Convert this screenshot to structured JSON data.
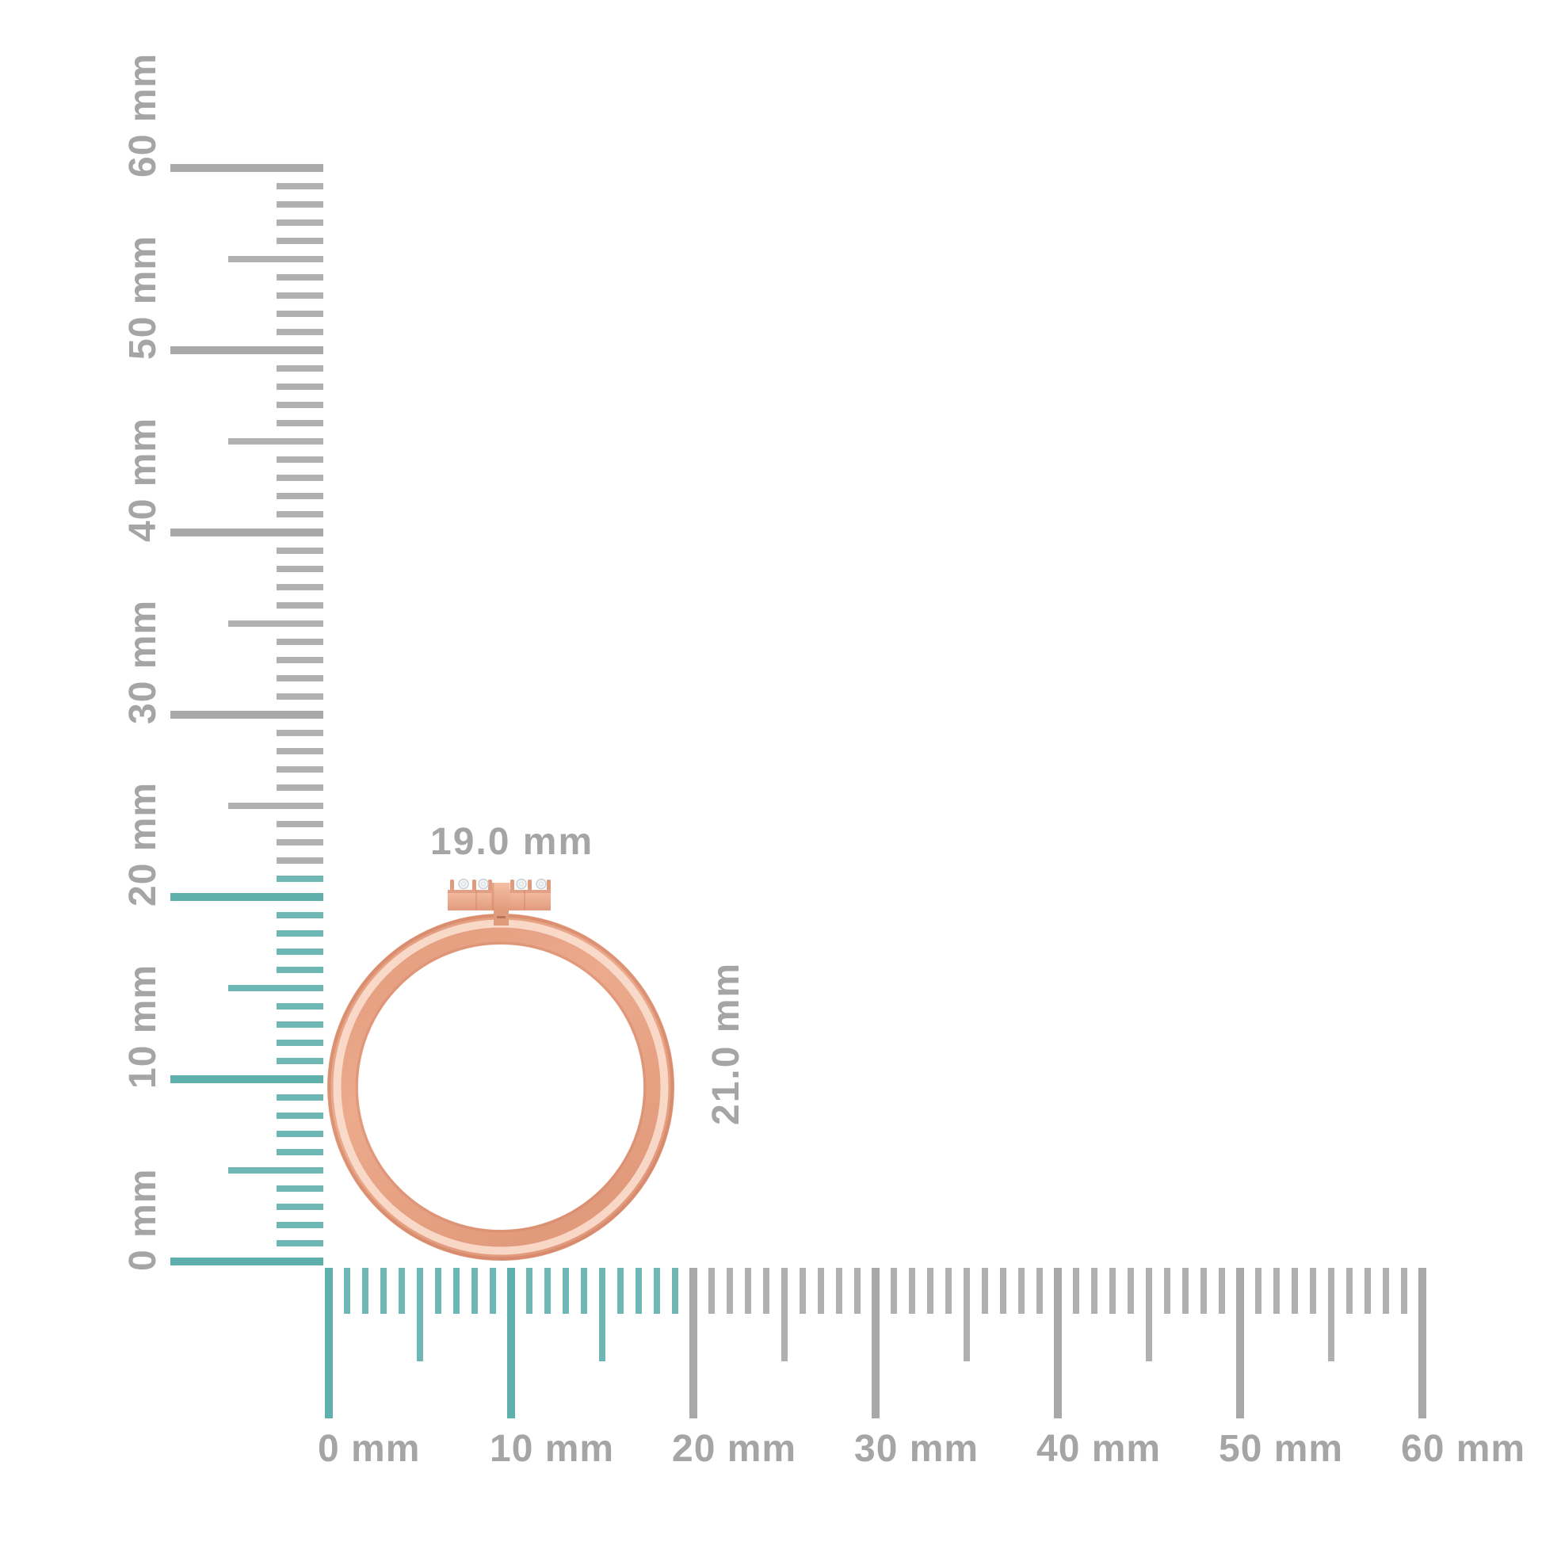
{
  "measurements": {
    "width_label": "19.0 mm",
    "height_label": "21.0 mm"
  },
  "rulers": {
    "unit": "mm",
    "vertical": {
      "range_mm": [
        0,
        60
      ],
      "major_step_mm": 10,
      "minor_step_mm": 1,
      "labels": [
        "0 mm",
        "10 mm",
        "20 mm",
        "30 mm",
        "40 mm",
        "50 mm",
        "60 mm"
      ],
      "highlighted_extent_mm": 21
    },
    "horizontal": {
      "range_mm": [
        0,
        60
      ],
      "major_step_mm": 10,
      "minor_step_mm": 1,
      "labels": [
        "0 mm",
        "10 mm",
        "20 mm",
        "30 mm",
        "40 mm",
        "50 mm",
        "60 mm"
      ],
      "highlighted_extent_mm": 19
    }
  },
  "ring": {
    "stone_count": 4
  },
  "colors": {
    "background": "#ffffff",
    "tick_gray": "#b0b0b0",
    "tick_gray_major": "#a8a8a8",
    "tick_teal": "#6fb7b4",
    "tick_teal_major": "#5fb0ac",
    "label_text": "#a5a5a5",
    "gold_base": "#ecaa8c",
    "gold_mid": "#e29a7c",
    "gold_dark": "#cf7f63",
    "gold_deep": "#9c5a42",
    "gold_highlight": "#fbe2d3",
    "gold_bar_light": "#f4bfa4",
    "diamond_fill": "#f3f5f6",
    "diamond_edge": "#c9cfd4"
  }
}
